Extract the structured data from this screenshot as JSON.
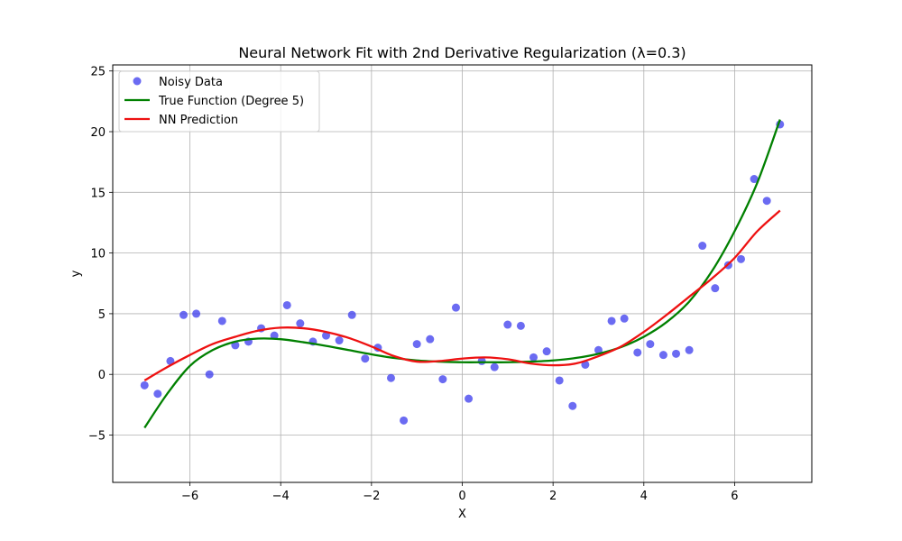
{
  "chart_data": {
    "type": "line",
    "title": "Neural Network Fit with 2nd Derivative Regularization (λ=0.3)",
    "xlabel": "X",
    "ylabel": "y",
    "xlim": [
      -7.7,
      7.7
    ],
    "ylim": [
      -8.9,
      25.5
    ],
    "xticks": [
      -6,
      -4,
      -2,
      0,
      2,
      4,
      6
    ],
    "yticks": [
      -5,
      0,
      5,
      10,
      15,
      20,
      25
    ],
    "xtick_labels": [
      "−6",
      "−4",
      "−2",
      "0",
      "2",
      "4",
      "6"
    ],
    "ytick_labels": [
      "−5",
      "0",
      "5",
      "10",
      "15",
      "20",
      "25"
    ],
    "grid": true,
    "legend_position": "top-left",
    "colors": {
      "scatter": "#3a3aee",
      "true_function": "#008000",
      "nn_prediction": "#ee1111",
      "grid": "#b0b0b0"
    },
    "series": [
      {
        "name": "Noisy Data",
        "kind": "scatter",
        "points": [
          [
            -7.0,
            -0.9
          ],
          [
            -6.71,
            -1.6
          ],
          [
            -6.43,
            1.1
          ],
          [
            -6.14,
            4.9
          ],
          [
            -5.86,
            5.0
          ],
          [
            -5.57,
            0.0
          ],
          [
            -5.29,
            4.4
          ],
          [
            -5.0,
            2.4
          ],
          [
            -4.71,
            2.7
          ],
          [
            -4.43,
            3.8
          ],
          [
            -4.14,
            3.2
          ],
          [
            -3.86,
            5.7
          ],
          [
            -3.57,
            4.2
          ],
          [
            -3.29,
            2.7
          ],
          [
            -3.0,
            3.2
          ],
          [
            -2.71,
            2.8
          ],
          [
            -2.43,
            4.9
          ],
          [
            -2.14,
            1.3
          ],
          [
            -1.86,
            2.2
          ],
          [
            -1.57,
            -0.3
          ],
          [
            -1.29,
            -3.8
          ],
          [
            -1.0,
            2.5
          ],
          [
            -0.71,
            2.9
          ],
          [
            -0.43,
            -0.4
          ],
          [
            -0.14,
            5.5
          ],
          [
            0.14,
            -2.0
          ],
          [
            0.43,
            1.1
          ],
          [
            0.71,
            0.6
          ],
          [
            1.0,
            4.1
          ],
          [
            1.29,
            4.0
          ],
          [
            1.57,
            1.4
          ],
          [
            1.86,
            1.9
          ],
          [
            2.14,
            -0.5
          ],
          [
            2.43,
            -2.6
          ],
          [
            2.71,
            0.8
          ],
          [
            3.0,
            2.0
          ],
          [
            3.29,
            4.4
          ],
          [
            3.57,
            4.6
          ],
          [
            3.86,
            1.8
          ],
          [
            4.14,
            2.5
          ],
          [
            4.43,
            1.6
          ],
          [
            4.71,
            1.7
          ],
          [
            5.0,
            2.0
          ],
          [
            5.29,
            10.6
          ],
          [
            5.57,
            7.1
          ],
          [
            5.86,
            9.0
          ],
          [
            6.14,
            9.5
          ],
          [
            6.43,
            16.1
          ],
          [
            6.71,
            14.3
          ],
          [
            7.0,
            20.6
          ]
        ]
      },
      {
        "name": "True Function (Degree 5)",
        "kind": "line",
        "points": [
          [
            -7.0,
            -4.4
          ],
          [
            -6.5,
            -1.6
          ],
          [
            -6.0,
            0.7
          ],
          [
            -5.5,
            2.0
          ],
          [
            -5.0,
            2.7
          ],
          [
            -4.5,
            2.95
          ],
          [
            -4.0,
            2.9
          ],
          [
            -3.5,
            2.65
          ],
          [
            -3.0,
            2.35
          ],
          [
            -2.5,
            2.0
          ],
          [
            -2.0,
            1.65
          ],
          [
            -1.5,
            1.35
          ],
          [
            -1.0,
            1.15
          ],
          [
            -0.5,
            1.05
          ],
          [
            0.0,
            1.0
          ],
          [
            0.5,
            1.0
          ],
          [
            1.0,
            1.0
          ],
          [
            1.5,
            1.05
          ],
          [
            2.0,
            1.15
          ],
          [
            2.5,
            1.35
          ],
          [
            3.0,
            1.7
          ],
          [
            3.5,
            2.25
          ],
          [
            4.0,
            3.1
          ],
          [
            4.5,
            4.3
          ],
          [
            5.0,
            6.0
          ],
          [
            5.5,
            8.5
          ],
          [
            6.0,
            11.8
          ],
          [
            6.5,
            15.8
          ],
          [
            7.0,
            21.0
          ]
        ]
      },
      {
        "name": "NN Prediction",
        "kind": "line",
        "points": [
          [
            -7.0,
            -0.5
          ],
          [
            -6.5,
            0.6
          ],
          [
            -6.0,
            1.6
          ],
          [
            -5.5,
            2.5
          ],
          [
            -5.0,
            3.1
          ],
          [
            -4.5,
            3.6
          ],
          [
            -4.0,
            3.85
          ],
          [
            -3.5,
            3.8
          ],
          [
            -3.0,
            3.5
          ],
          [
            -2.5,
            3.0
          ],
          [
            -2.0,
            2.3
          ],
          [
            -1.5,
            1.5
          ],
          [
            -1.0,
            1.05
          ],
          [
            -0.5,
            1.1
          ],
          [
            0.0,
            1.3
          ],
          [
            0.5,
            1.4
          ],
          [
            1.0,
            1.25
          ],
          [
            1.5,
            0.9
          ],
          [
            2.0,
            0.75
          ],
          [
            2.5,
            0.9
          ],
          [
            3.0,
            1.5
          ],
          [
            3.5,
            2.3
          ],
          [
            4.0,
            3.5
          ],
          [
            4.5,
            4.9
          ],
          [
            5.0,
            6.4
          ],
          [
            5.5,
            7.9
          ],
          [
            6.0,
            9.6
          ],
          [
            6.5,
            11.8
          ],
          [
            7.0,
            13.5
          ]
        ]
      }
    ]
  }
}
